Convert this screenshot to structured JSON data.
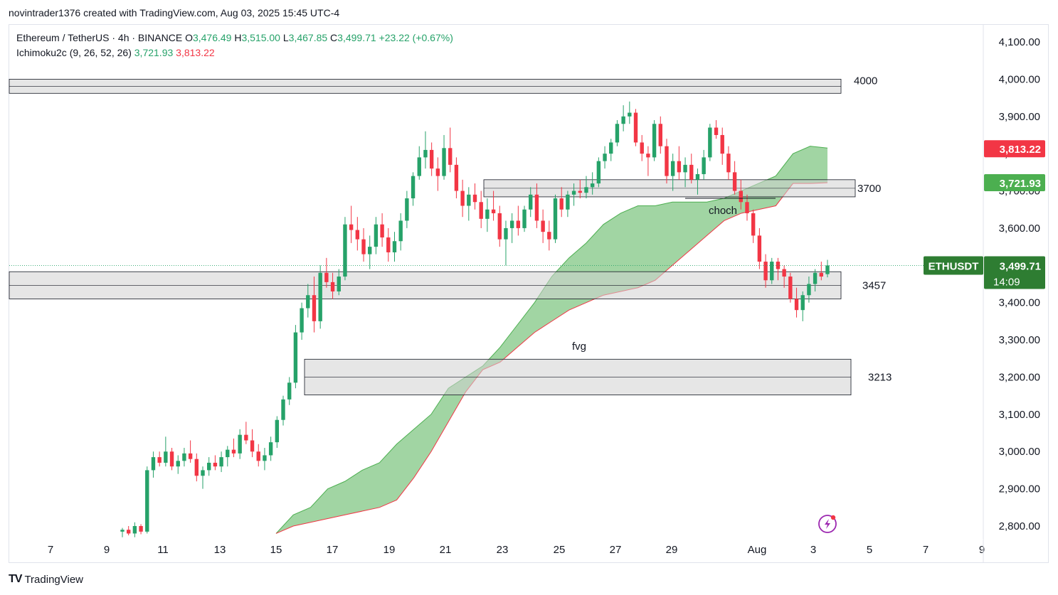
{
  "header": {
    "attribution": "novintrader1376 created with TradingView.com, Aug 03, 2025 15:45 UTC-4"
  },
  "legend": {
    "symbol": "Ethereum / TetherUS · 4h · BINANCE",
    "o_label": "O",
    "o_value": "3,476.49",
    "h_label": "H",
    "h_value": "3,515.00",
    "l_label": "L",
    "l_value": "3,467.85",
    "c_label": "C",
    "c_value": "3,499.71",
    "change": "+23.22 (+0.67%)",
    "indicator": "Ichimoku2c (9, 26, 52, 26)",
    "ind_val1": "3,721.93",
    "ind_val2": "3,813.22"
  },
  "footer": {
    "brand": "TradingView",
    "logo": "TV"
  },
  "colors": {
    "up": "#26a269",
    "down": "#f23645",
    "cloud": "#81c784",
    "zone": "#d1d1d1",
    "accent": "#2e7d32"
  },
  "chart_data": {
    "type": "candlestick",
    "symbol": "ETHUSDT",
    "ylim": [
      2760,
      4140
    ],
    "y_ticks": [
      "2,800.00",
      "2,900.00",
      "3,000.00",
      "3,100.00",
      "3,200.00",
      "3,300.00",
      "3,400.00",
      "3,500.00",
      "3,600.00",
      "3,700.00",
      "3,800.00",
      "3,900.00",
      "4,000.00",
      "4,100.00"
    ],
    "x_ticks": [
      "7",
      "9",
      "11",
      "13",
      "15",
      "17",
      "19",
      "21",
      "23",
      "25",
      "27",
      "29",
      "Aug",
      "3",
      "5",
      "7",
      "9"
    ],
    "price_labels": [
      {
        "value": 3813.22,
        "text": "3,813.22",
        "color": "#f23645"
      },
      {
        "value": 3721.93,
        "text": "3,721.93",
        "color": "#4caf50"
      }
    ],
    "last_price": {
      "name": "ETHUSDT",
      "text": "3,499.71",
      "countdown": "14:09",
      "value": 3499.71
    },
    "zones": [
      {
        "label": "4000",
        "from": 3962,
        "to": 4000
      },
      {
        "label": "3700",
        "from": 3684,
        "to": 3730
      },
      {
        "label": "3457",
        "from": 3410,
        "to": 3483
      },
      {
        "label": "3213",
        "from": 3152,
        "to": 3248
      }
    ],
    "annotations": [
      {
        "text": "choch",
        "price": 3675
      },
      {
        "text": "fvg",
        "price": 3282
      }
    ],
    "candles_4h_approx": [
      [
        2785,
        2795,
        2770,
        2790
      ],
      [
        2790,
        2800,
        2775,
        2780
      ],
      [
        2780,
        2810,
        2770,
        2800
      ],
      [
        2800,
        2805,
        2778,
        2785
      ],
      [
        2785,
        2960,
        2780,
        2950
      ],
      [
        2950,
        3000,
        2930,
        2985
      ],
      [
        2985,
        3000,
        2960,
        2970
      ],
      [
        2970,
        3040,
        2960,
        3000
      ],
      [
        3000,
        3010,
        2950,
        2960
      ],
      [
        2960,
        2990,
        2940,
        2975
      ],
      [
        2975,
        3010,
        2960,
        2995
      ],
      [
        2995,
        3030,
        2970,
        2980
      ],
      [
        2980,
        2995,
        2920,
        2935
      ],
      [
        2935,
        2960,
        2900,
        2950
      ],
      [
        2950,
        2985,
        2935,
        2970
      ],
      [
        2970,
        2990,
        2950,
        2960
      ],
      [
        2960,
        3000,
        2945,
        2985
      ],
      [
        2985,
        3015,
        2960,
        3005
      ],
      [
        3005,
        3035,
        2985,
        2995
      ],
      [
        2995,
        3060,
        2980,
        3045
      ],
      [
        3045,
        3080,
        3020,
        3030
      ],
      [
        3030,
        3060,
        2985,
        3000
      ],
      [
        3000,
        3020,
        2960,
        2975
      ],
      [
        2975,
        3010,
        2950,
        2990
      ],
      [
        2990,
        3040,
        2975,
        3025
      ],
      [
        3025,
        3095,
        3010,
        3085
      ],
      [
        3085,
        3150,
        3070,
        3140
      ],
      [
        3140,
        3200,
        3125,
        3185
      ],
      [
        3185,
        3340,
        3170,
        3320
      ],
      [
        3320,
        3400,
        3300,
        3385
      ],
      [
        3385,
        3450,
        3360,
        3420
      ],
      [
        3420,
        3470,
        3320,
        3350
      ],
      [
        3350,
        3500,
        3330,
        3480
      ],
      [
        3480,
        3520,
        3440,
        3455
      ],
      [
        3455,
        3480,
        3410,
        3430
      ],
      [
        3430,
        3490,
        3420,
        3470
      ],
      [
        3470,
        3630,
        3460,
        3610
      ],
      [
        3610,
        3660,
        3560,
        3595
      ],
      [
        3595,
        3630,
        3540,
        3570
      ],
      [
        3570,
        3600,
        3510,
        3530
      ],
      [
        3530,
        3580,
        3490,
        3550
      ],
      [
        3550,
        3630,
        3530,
        3610
      ],
      [
        3610,
        3640,
        3550,
        3575
      ],
      [
        3575,
        3600,
        3510,
        3535
      ],
      [
        3535,
        3590,
        3510,
        3565
      ],
      [
        3565,
        3640,
        3540,
        3620
      ],
      [
        3620,
        3700,
        3600,
        3680
      ],
      [
        3680,
        3750,
        3660,
        3740
      ],
      [
        3740,
        3820,
        3730,
        3790
      ],
      [
        3790,
        3860,
        3760,
        3810
      ],
      [
        3810,
        3830,
        3740,
        3760
      ],
      [
        3760,
        3790,
        3700,
        3740
      ],
      [
        3740,
        3850,
        3730,
        3815
      ],
      [
        3815,
        3870,
        3750,
        3770
      ],
      [
        3770,
        3790,
        3680,
        3700
      ],
      [
        3700,
        3730,
        3630,
        3660
      ],
      [
        3660,
        3710,
        3620,
        3690
      ],
      [
        3690,
        3720,
        3650,
        3670
      ],
      [
        3670,
        3700,
        3600,
        3625
      ],
      [
        3625,
        3680,
        3590,
        3650
      ],
      [
        3650,
        3700,
        3620,
        3640
      ],
      [
        3640,
        3660,
        3550,
        3570
      ],
      [
        3570,
        3620,
        3500,
        3600
      ],
      [
        3600,
        3640,
        3560,
        3620
      ],
      [
        3620,
        3660,
        3580,
        3600
      ],
      [
        3600,
        3660,
        3590,
        3650
      ],
      [
        3650,
        3710,
        3630,
        3690
      ],
      [
        3690,
        3720,
        3600,
        3620
      ],
      [
        3620,
        3650,
        3560,
        3590
      ],
      [
        3590,
        3620,
        3540,
        3570
      ],
      [
        3570,
        3690,
        3560,
        3680
      ],
      [
        3680,
        3710,
        3630,
        3650
      ],
      [
        3650,
        3700,
        3630,
        3690
      ],
      [
        3690,
        3720,
        3660,
        3700
      ],
      [
        3700,
        3730,
        3680,
        3695
      ],
      [
        3695,
        3740,
        3680,
        3710
      ],
      [
        3710,
        3750,
        3690,
        3720
      ],
      [
        3720,
        3790,
        3710,
        3780
      ],
      [
        3780,
        3820,
        3760,
        3800
      ],
      [
        3800,
        3840,
        3780,
        3830
      ],
      [
        3830,
        3890,
        3820,
        3880
      ],
      [
        3880,
        3930,
        3860,
        3900
      ],
      [
        3900,
        3940,
        3880,
        3910
      ],
      [
        3910,
        3920,
        3820,
        3830
      ],
      [
        3830,
        3850,
        3780,
        3800
      ],
      [
        3800,
        3820,
        3740,
        3790
      ],
      [
        3790,
        3890,
        3780,
        3880
      ],
      [
        3880,
        3900,
        3800,
        3820
      ],
      [
        3820,
        3840,
        3720,
        3740
      ],
      [
        3740,
        3800,
        3700,
        3780
      ],
      [
        3780,
        3820,
        3730,
        3750
      ],
      [
        3750,
        3790,
        3710,
        3770
      ],
      [
        3770,
        3800,
        3720,
        3730
      ],
      [
        3730,
        3760,
        3690,
        3745
      ],
      [
        3745,
        3810,
        3730,
        3790
      ],
      [
        3790,
        3880,
        3780,
        3870
      ],
      [
        3870,
        3890,
        3840,
        3850
      ],
      [
        3850,
        3870,
        3770,
        3800
      ],
      [
        3800,
        3820,
        3730,
        3750
      ],
      [
        3750,
        3780,
        3690,
        3700
      ],
      [
        3700,
        3730,
        3650,
        3670
      ],
      [
        3670,
        3690,
        3620,
        3640
      ],
      [
        3640,
        3650,
        3560,
        3580
      ],
      [
        3580,
        3600,
        3490,
        3510
      ],
      [
        3510,
        3530,
        3440,
        3460
      ],
      [
        3460,
        3520,
        3450,
        3510
      ],
      [
        3510,
        3520,
        3460,
        3490
      ],
      [
        3490,
        3500,
        3440,
        3470
      ],
      [
        3470,
        3480,
        3400,
        3410
      ],
      [
        3410,
        3440,
        3360,
        3380
      ],
      [
        3380,
        3430,
        3350,
        3420
      ],
      [
        3420,
        3470,
        3400,
        3450
      ],
      [
        3450,
        3490,
        3430,
        3480
      ],
      [
        3480,
        3510,
        3460,
        3470
      ],
      [
        3476.49,
        3515,
        3467.85,
        3499.71
      ]
    ],
    "cloud_note": "Ichimoku cloud (Senkou A/B), green, drawn between two span series",
    "span_a": [
      2780,
      2830,
      2850,
      2900,
      2920,
      2950,
      2970,
      3020,
      3060,
      3100,
      3170,
      3200,
      3230,
      3280,
      3340,
      3400,
      3470,
      3520,
      3560,
      3610,
      3640,
      3660,
      3660,
      3670,
      3670,
      3670,
      3680,
      3700,
      3720,
      3740,
      3800,
      3820,
      3815
    ],
    "span_b": [
      2780,
      2800,
      2810,
      2820,
      2830,
      2840,
      2850,
      2870,
      2930,
      3000,
      3080,
      3160,
      3220,
      3240,
      3280,
      3320,
      3350,
      3380,
      3400,
      3420,
      3430,
      3440,
      3460,
      3500,
      3540,
      3580,
      3620,
      3640,
      3650,
      3660,
      3720,
      3720,
      3722
    ]
  }
}
